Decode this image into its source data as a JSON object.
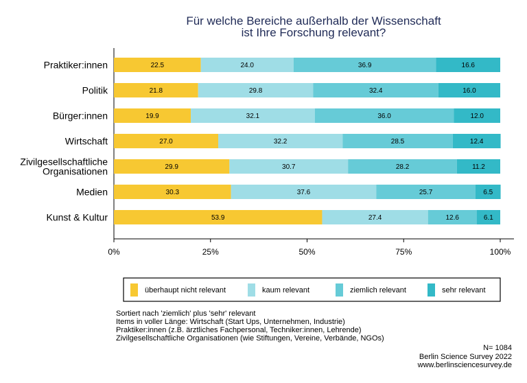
{
  "chart_data": {
    "type": "bar",
    "orientation": "horizontal",
    "stacked": true,
    "title": [
      "Für welche Bereiche außerhalb der Wissenschaft",
      "ist Ihre Forschung relevant?"
    ],
    "categories": [
      [
        "Praktiker:innen"
      ],
      [
        "Politik"
      ],
      [
        "Bürger:innen"
      ],
      [
        "Wirtschaft"
      ],
      [
        "Zivilgesellschaftliche",
        "Organisationen"
      ],
      [
        "Medien"
      ],
      [
        "Kunst & Kultur"
      ]
    ],
    "series": [
      {
        "name": "überhaupt nicht relevant",
        "color": "#f7c832",
        "values": [
          22.5,
          21.8,
          19.9,
          27.0,
          29.9,
          30.3,
          53.9
        ]
      },
      {
        "name": "kaum relevant",
        "color": "#9fdde6",
        "values": [
          24.0,
          29.8,
          32.1,
          32.2,
          30.7,
          37.6,
          27.4
        ]
      },
      {
        "name": "ziemlich relevant",
        "color": "#66cbd7",
        "values": [
          36.9,
          32.4,
          36.0,
          28.5,
          28.2,
          25.7,
          12.6
        ]
      },
      {
        "name": "sehr relevant",
        "color": "#33b9c7",
        "values": [
          16.6,
          16.0,
          12.0,
          12.4,
          11.2,
          6.5,
          6.1
        ]
      }
    ],
    "xlim": [
      0,
      100
    ],
    "xticks": [
      "0%",
      "25%",
      "50%",
      "75%",
      "100%"
    ],
    "legend_position": "bottom"
  },
  "footnotes": [
    "Sortiert nach 'ziemlich' plus 'sehr' relevant",
    "Items in voller Länge: Wirtschaft (Start Ups, Unternehmen, Industrie)",
    "Praktiker:innen (z.B. ärztliches Fachpersonal, Techniker:innen, Lehrende)",
    "Zivilgesellschaftliche Organisationen (wie Stiftungen, Vereine, Verbände, NGOs)"
  ],
  "source": {
    "n": "N= 1084",
    "survey": "Berlin Science Survey 2022",
    "url": "www.berlinsciencesurvey.de"
  }
}
